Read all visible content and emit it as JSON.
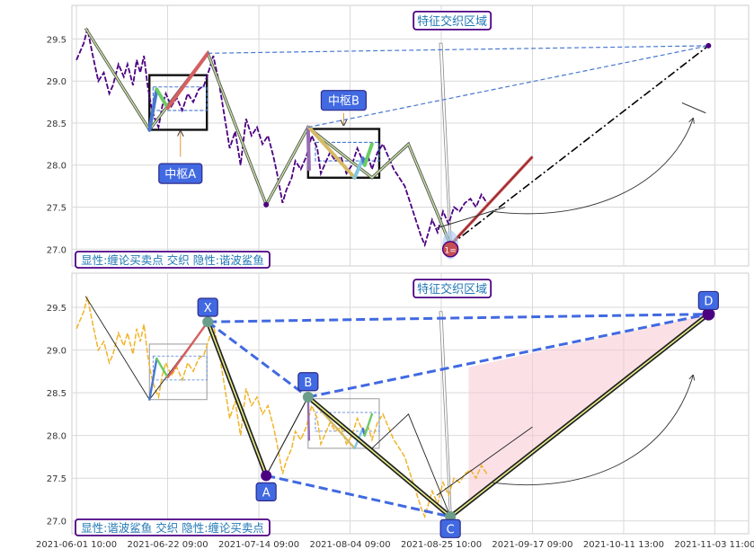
{
  "chart_data": [
    {
      "type": "line",
      "panel": "top",
      "ylim": [
        26.8,
        29.9
      ],
      "y_ticks": [
        27.0,
        27.5,
        28.0,
        28.5,
        29.0,
        29.5
      ],
      "x_range_index": [
        -5,
        737
      ],
      "legend_text": "显性:缠论买卖点 交织 隐性:谐波鲨鱼",
      "annotations": {
        "zone_text": "特征交织区域",
        "pivot_a": "中枢A",
        "pivot_b": "中枢B",
        "buy_point": "1="
      },
      "price_curve": [
        [
          0,
          29.25
        ],
        [
          8,
          29.45
        ],
        [
          12,
          29.62
        ],
        [
          18,
          29.3
        ],
        [
          24,
          29.0
        ],
        [
          30,
          29.1
        ],
        [
          36,
          28.85
        ],
        [
          40,
          28.95
        ],
        [
          46,
          29.2
        ],
        [
          52,
          29.05
        ],
        [
          56,
          29.2
        ],
        [
          62,
          28.95
        ],
        [
          66,
          29.25
        ],
        [
          70,
          29.1
        ],
        [
          74,
          29.3
        ],
        [
          78,
          28.95
        ],
        [
          82,
          28.7
        ],
        [
          86,
          28.55
        ],
        [
          90,
          28.45
        ],
        [
          94,
          28.7
        ],
        [
          98,
          28.85
        ],
        [
          104,
          28.7
        ],
        [
          110,
          28.8
        ],
        [
          116,
          28.65
        ],
        [
          122,
          28.85
        ],
        [
          128,
          28.75
        ],
        [
          134,
          28.9
        ],
        [
          140,
          28.95
        ],
        [
          146,
          29.15
        ],
        [
          150,
          29.3
        ],
        [
          156,
          29.0
        ],
        [
          162,
          28.6
        ],
        [
          168,
          28.2
        ],
        [
          174,
          28.4
        ],
        [
          180,
          28.0
        ],
        [
          186,
          28.55
        ],
        [
          192,
          28.35
        ],
        [
          198,
          28.45
        ],
        [
          204,
          28.25
        ],
        [
          210,
          28.35
        ],
        [
          216,
          28.1
        ],
        [
          220,
          27.9
        ],
        [
          226,
          27.55
        ],
        [
          230,
          27.7
        ],
        [
          236,
          27.85
        ],
        [
          240,
          28.05
        ],
        [
          246,
          27.95
        ],
        [
          252,
          28.1
        ],
        [
          258,
          28.35
        ],
        [
          264,
          28.2
        ],
        [
          268,
          27.9
        ],
        [
          272,
          28.0
        ],
        [
          278,
          28.15
        ],
        [
          284,
          28.05
        ],
        [
          290,
          28.1
        ],
        [
          296,
          27.9
        ],
        [
          302,
          28.0
        ],
        [
          308,
          28.2
        ],
        [
          314,
          28.05
        ],
        [
          320,
          28.1
        ],
        [
          324,
          27.95
        ],
        [
          330,
          28.15
        ],
        [
          336,
          28.25
        ],
        [
          342,
          28.1
        ],
        [
          348,
          27.95
        ],
        [
          354,
          27.85
        ],
        [
          360,
          27.75
        ],
        [
          366,
          27.55
        ],
        [
          372,
          27.35
        ],
        [
          378,
          27.15
        ],
        [
          382,
          27.05
        ],
        [
          386,
          27.2
        ],
        [
          390,
          27.35
        ],
        [
          396,
          27.2
        ],
        [
          402,
          27.45
        ],
        [
          408,
          27.3
        ],
        [
          414,
          27.5
        ],
        [
          420,
          27.45
        ],
        [
          426,
          27.55
        ],
        [
          432,
          27.6
        ],
        [
          438,
          27.5
        ],
        [
          444,
          27.65
        ],
        [
          450,
          27.55
        ]
      ],
      "zigzag": [
        [
          10,
          29.63
        ],
        [
          80,
          28.42
        ],
        [
          144,
          29.33
        ],
        [
          208,
          27.53
        ],
        [
          254,
          28.45
        ],
        [
          324,
          27.85
        ],
        [
          364,
          28.25
        ],
        [
          410,
          27.05
        ]
      ],
      "pivot_boxes": [
        {
          "x": [
            80,
            143
          ],
          "y": [
            28.42,
            29.07
          ]
        },
        {
          "x": [
            254,
            332
          ],
          "y": [
            27.85,
            28.43
          ]
        }
      ],
      "pivot_inner_lines": [
        {
          "x": [
            84,
            143
          ],
          "y": [
            28.65,
            28.93
          ]
        },
        {
          "x": [
            262,
            332
          ],
          "y": [
            28.05,
            28.27
          ]
        }
      ],
      "colored_strokes": [
        {
          "color": "#4878d0",
          "points": [
            [
              80,
              28.42
            ],
            [
              88,
              28.9
            ]
          ]
        },
        {
          "color": "#6acc65",
          "points": [
            [
              88,
              28.9
            ],
            [
              100,
              28.68
            ]
          ]
        },
        {
          "color": "#d65f5f",
          "points": [
            [
              100,
              28.68
            ],
            [
              144,
              29.33
            ]
          ]
        },
        {
          "color": "#956cb4",
          "points": [
            [
              254,
              28.45
            ],
            [
              255,
              27.95
            ]
          ]
        },
        {
          "color": "#d5bb67",
          "points": [
            [
              255,
              28.45
            ],
            [
              305,
              27.85
            ]
          ]
        },
        {
          "color": "#82c6e2",
          "points": [
            [
              305,
              27.85
            ],
            [
              314,
              28.08
            ]
          ]
        },
        {
          "color": "#4878d0",
          "points": [
            [
              314,
              28.08
            ],
            [
              316,
              28.0
            ]
          ]
        },
        {
          "color": "#6acc65",
          "points": [
            [
              316,
              28.0
            ],
            [
              324,
              28.25
            ]
          ]
        }
      ],
      "shark_dashed": [
        [
          [
            144,
            29.33
          ],
          [
            693,
            29.42
          ]
        ],
        [
          [
            254,
            28.45
          ],
          [
            693,
            29.42
          ]
        ]
      ],
      "projection_dashdot": [
        [
          410,
          27.05
        ],
        [
          693,
          29.42
        ]
      ],
      "red_trend": [
        [
          410,
          27.05
        ],
        [
          500,
          28.1
        ]
      ],
      "points": [
        [
          208,
          27.53
        ],
        [
          693,
          29.42
        ]
      ]
    },
    {
      "type": "line",
      "panel": "bottom",
      "ylim": [
        26.85,
        29.9
      ],
      "y_ticks": [
        27.0,
        27.5,
        28.0,
        28.5,
        29.0,
        29.5
      ],
      "legend_text": "显性:谐波鲨鱼 交织 隐性:缠论买卖点",
      "annotations": {
        "zone_text": "特征交织区域",
        "points": [
          "X",
          "A",
          "B",
          "C",
          "D"
        ]
      },
      "xabcd": {
        "X": [
          144,
          29.33
        ],
        "A": [
          208,
          27.53
        ],
        "B": [
          254,
          28.45
        ],
        "C": [
          410,
          27.05
        ],
        "D": [
          693,
          29.42
        ]
      },
      "x_tick_labels": [
        "2021-06-01 10:00",
        "2021-06-22 09:00",
        "2021-07-14 09:00",
        "2021-08-04 09:00",
        "2021-08-25 10:00",
        "2021-09-17 09:00",
        "2021-10-11 13:00",
        "2021-11-03 11:00"
      ],
      "x_tick_index": [
        0,
        100,
        200,
        300,
        400,
        500,
        600,
        700
      ],
      "prz_band": {
        "x_start": 430,
        "y_top_start": 28.8,
        "x_end": 693
      }
    }
  ]
}
